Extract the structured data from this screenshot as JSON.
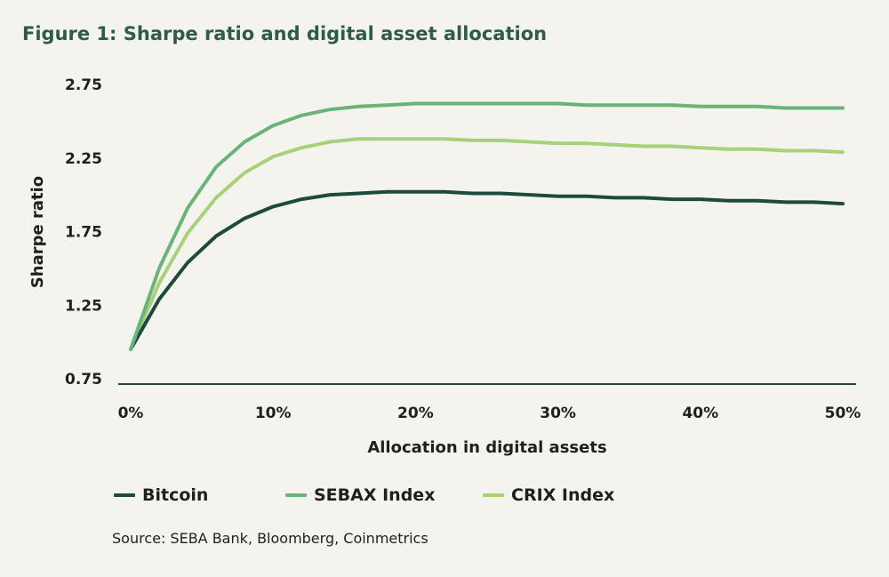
{
  "chart_data": {
    "type": "line",
    "title": "Figure 1: Sharpe ratio and digital asset allocation",
    "xlabel": "Allocation in digital assets",
    "ylabel": "Sharpe ratio",
    "xlim": [
      0,
      50
    ],
    "ylim": [
      0.75,
      2.75
    ],
    "x_ticks": [
      "0%",
      "10%",
      "20%",
      "30%",
      "40%",
      "50%"
    ],
    "y_ticks": [
      "2.75",
      "2.25",
      "1.75",
      "1.25",
      "0.75"
    ],
    "x": [
      0,
      2,
      4,
      6,
      8,
      10,
      12,
      14,
      16,
      18,
      20,
      22,
      24,
      26,
      28,
      30,
      32,
      34,
      36,
      38,
      40,
      42,
      44,
      46,
      48,
      50
    ],
    "grid": false,
    "legend_position": "bottom",
    "series": [
      {
        "name": "Bitcoin",
        "color": "#1e4a3d",
        "values": [
          0.95,
          1.29,
          1.54,
          1.72,
          1.84,
          1.92,
          1.97,
          2.0,
          2.01,
          2.02,
          2.02,
          2.02,
          2.01,
          2.01,
          2.0,
          1.99,
          1.99,
          1.98,
          1.98,
          1.97,
          1.97,
          1.96,
          1.96,
          1.95,
          1.95,
          1.94
        ]
      },
      {
        "name": "SEBAX Index",
        "color": "#6ab47a",
        "values": [
          0.95,
          1.5,
          1.91,
          2.19,
          2.36,
          2.47,
          2.54,
          2.58,
          2.6,
          2.61,
          2.62,
          2.62,
          2.62,
          2.62,
          2.62,
          2.62,
          2.61,
          2.61,
          2.61,
          2.61,
          2.6,
          2.6,
          2.6,
          2.59,
          2.59,
          2.59
        ]
      },
      {
        "name": "CRIX Index",
        "color": "#a7d27c",
        "values": [
          0.95,
          1.4,
          1.74,
          1.98,
          2.15,
          2.26,
          2.32,
          2.36,
          2.38,
          2.38,
          2.38,
          2.38,
          2.37,
          2.37,
          2.36,
          2.35,
          2.35,
          2.34,
          2.33,
          2.33,
          2.32,
          2.31,
          2.31,
          2.3,
          2.3,
          2.29
        ]
      }
    ]
  },
  "source": "Source: SEBA Bank, Bloomberg, Coinmetrics"
}
